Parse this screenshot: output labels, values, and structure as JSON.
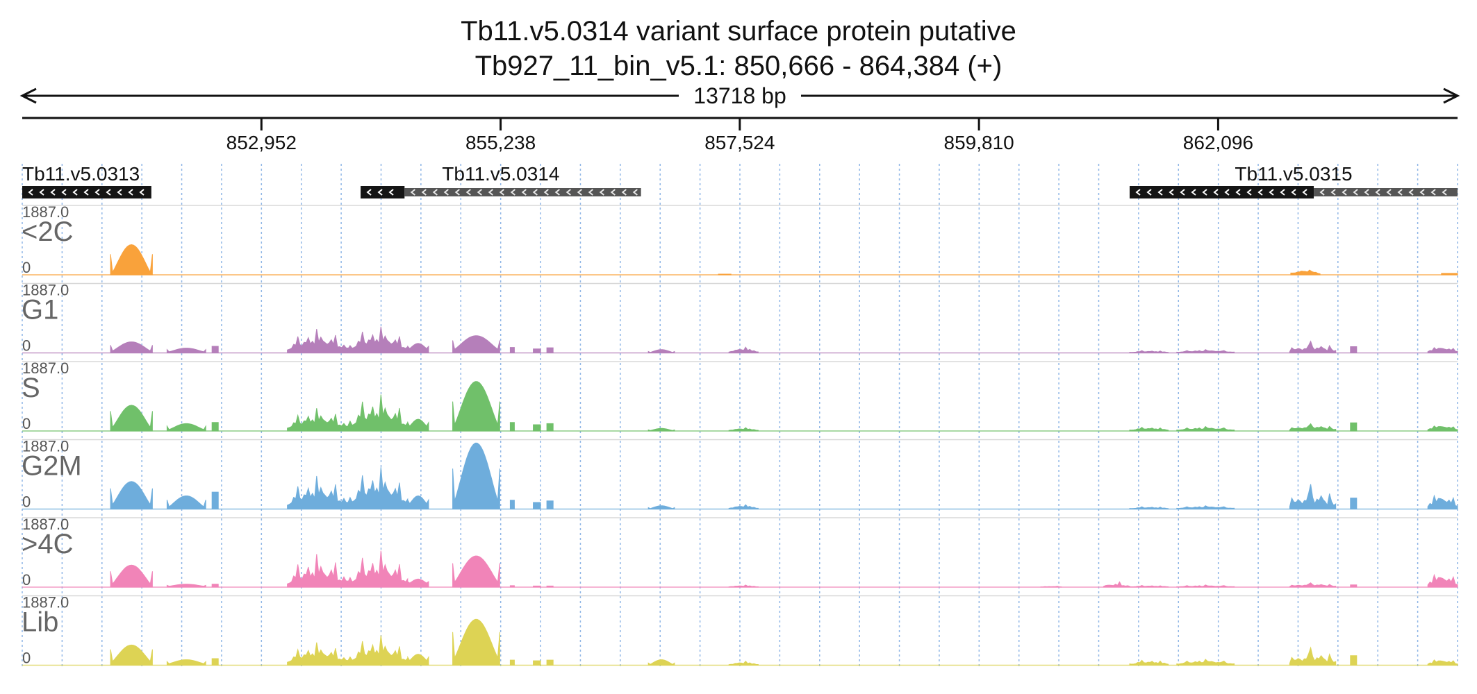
{
  "chart_data": {
    "type": "area",
    "title": "Tb11.v5.0314  variant surface protein  putative",
    "subtitle": "Tb927_11_bin_v5.1: 850,666 - 864,384 (+)",
    "span_label": "13718 bp",
    "xlim": [
      850666,
      864384
    ],
    "x_ticks": [
      852952,
      855238,
      857524,
      859810,
      862096
    ],
    "x_tick_labels": [
      "852,952",
      "855,238",
      "857,524",
      "859,810",
      "862,096"
    ],
    "genes": [
      {
        "name": "Tb11.v5.0313",
        "start": 850666,
        "end": 851900,
        "strand": "-",
        "segments": [
          {
            "start": 850666,
            "end": 851900,
            "style": "solid"
          }
        ]
      },
      {
        "name": "Tb11.v5.0314",
        "start": 853900,
        "end": 856580,
        "strand": "-",
        "segments": [
          {
            "start": 853900,
            "end": 854320,
            "style": "solid"
          },
          {
            "start": 854320,
            "end": 856580,
            "style": "utr"
          }
        ]
      },
      {
        "name": "Tb11.v5.0315",
        "start": 861250,
        "end": 864384,
        "strand": "-",
        "segments": [
          {
            "start": 861250,
            "end": 863010,
            "style": "solid"
          },
          {
            "start": 863010,
            "end": 864384,
            "style": "utr"
          }
        ]
      }
    ],
    "series": [
      {
        "name": "<2C",
        "color": "#F9A23B",
        "ymax_label": "1887.0",
        "ymin_label": "0",
        "blocks": [
          {
            "start": 851510,
            "end": 851910,
            "shape": "hump",
            "peak": 820,
            "edge": 560,
            "base": 0
          },
          {
            "start": 857320,
            "end": 857440,
            "shape": "flat",
            "peak": 18,
            "base": 0
          },
          {
            "start": 862790,
            "end": 863070,
            "shape": "bumpy",
            "peak": 140,
            "base": 80
          },
          {
            "start": 864230,
            "end": 864384,
            "shape": "flat",
            "peak": 40,
            "base": 0
          }
        ]
      },
      {
        "name": "G1",
        "color": "#B57FBA",
        "ymax_label": "1887.0",
        "ymin_label": "0",
        "blocks": [
          {
            "start": 851510,
            "end": 851910,
            "shape": "hump",
            "peak": 300,
            "edge": 210,
            "base": 30
          },
          {
            "start": 852050,
            "end": 852420,
            "shape": "hump",
            "peak": 130,
            "edge": 90,
            "base": 20
          },
          {
            "start": 852480,
            "end": 852540,
            "shape": "flat",
            "peak": 180,
            "base": 0
          },
          {
            "start": 853200,
            "end": 853780,
            "shape": "bumpy",
            "peak": 650,
            "base": 230
          },
          {
            "start": 853780,
            "end": 854350,
            "shape": "bumpy",
            "peak": 720,
            "base": 260
          },
          {
            "start": 854350,
            "end": 854550,
            "shape": "hump",
            "peak": 260,
            "edge": 180,
            "base": 80
          },
          {
            "start": 854780,
            "end": 855230,
            "shape": "hump",
            "peak": 470,
            "edge": 340,
            "base": 70
          },
          {
            "start": 855330,
            "end": 855370,
            "shape": "flat",
            "peak": 150,
            "base": 0
          },
          {
            "start": 855550,
            "end": 855620,
            "shape": "flat",
            "peak": 110,
            "base": 0
          },
          {
            "start": 855680,
            "end": 855740,
            "shape": "flat",
            "peak": 140,
            "base": 0
          },
          {
            "start": 856650,
            "end": 856900,
            "shape": "hump",
            "peak": 90,
            "edge": 40,
            "base": 0
          },
          {
            "start": 857420,
            "end": 857700,
            "shape": "bumpy",
            "peak": 160,
            "base": 60
          },
          {
            "start": 861250,
            "end": 861620,
            "shape": "bumpy",
            "peak": 70,
            "base": 30
          },
          {
            "start": 861700,
            "end": 862250,
            "shape": "bumpy",
            "peak": 90,
            "base": 40
          },
          {
            "start": 862780,
            "end": 863220,
            "shape": "bumpy",
            "peak": 320,
            "base": 80
          },
          {
            "start": 863360,
            "end": 863420,
            "shape": "flat",
            "peak": 170,
            "base": 0
          },
          {
            "start": 864100,
            "end": 864384,
            "shape": "bumpy",
            "peak": 190,
            "base": 90
          }
        ]
      },
      {
        "name": "S",
        "color": "#70C06A",
        "ymax_label": "1887.0",
        "ymin_label": "0",
        "blocks": [
          {
            "start": 851510,
            "end": 851910,
            "shape": "hump",
            "peak": 700,
            "edge": 540,
            "base": 40
          },
          {
            "start": 852050,
            "end": 852420,
            "shape": "hump",
            "peak": 200,
            "edge": 130,
            "base": 20
          },
          {
            "start": 852480,
            "end": 852540,
            "shape": "flat",
            "peak": 230,
            "base": 0
          },
          {
            "start": 853200,
            "end": 853780,
            "shape": "bumpy",
            "peak": 620,
            "base": 220
          },
          {
            "start": 853780,
            "end": 854350,
            "shape": "bumpy",
            "peak": 1000,
            "base": 320
          },
          {
            "start": 854350,
            "end": 854550,
            "shape": "hump",
            "peak": 320,
            "edge": 230,
            "base": 80
          },
          {
            "start": 854780,
            "end": 855230,
            "shape": "hump",
            "peak": 1350,
            "edge": 800,
            "base": 80
          },
          {
            "start": 855330,
            "end": 855370,
            "shape": "flat",
            "peak": 230,
            "base": 0
          },
          {
            "start": 855550,
            "end": 855620,
            "shape": "flat",
            "peak": 170,
            "base": 0
          },
          {
            "start": 855680,
            "end": 855740,
            "shape": "flat",
            "peak": 200,
            "base": 0
          },
          {
            "start": 856650,
            "end": 856900,
            "shape": "hump",
            "peak": 70,
            "edge": 30,
            "base": 0
          },
          {
            "start": 857420,
            "end": 857700,
            "shape": "bumpy",
            "peak": 90,
            "base": 40
          },
          {
            "start": 861250,
            "end": 861620,
            "shape": "bumpy",
            "peak": 110,
            "base": 50
          },
          {
            "start": 861700,
            "end": 862250,
            "shape": "bumpy",
            "peak": 120,
            "base": 50
          },
          {
            "start": 862780,
            "end": 863220,
            "shape": "bumpy",
            "peak": 200,
            "base": 70
          },
          {
            "start": 863360,
            "end": 863420,
            "shape": "flat",
            "peak": 220,
            "base": 0
          },
          {
            "start": 864100,
            "end": 864384,
            "shape": "bumpy",
            "peak": 180,
            "base": 90
          }
        ]
      },
      {
        "name": "G2M",
        "color": "#6EADDC",
        "ymax_label": "1887.0",
        "ymin_label": "0",
        "blocks": [
          {
            "start": 851510,
            "end": 851910,
            "shape": "hump",
            "peak": 750,
            "edge": 560,
            "base": 60
          },
          {
            "start": 852050,
            "end": 852420,
            "shape": "hump",
            "peak": 360,
            "edge": 250,
            "base": 30
          },
          {
            "start": 852480,
            "end": 852540,
            "shape": "flat",
            "peak": 460,
            "base": 0
          },
          {
            "start": 853200,
            "end": 853780,
            "shape": "bumpy",
            "peak": 900,
            "base": 300
          },
          {
            "start": 853780,
            "end": 854350,
            "shape": "bumpy",
            "peak": 1150,
            "base": 400
          },
          {
            "start": 854350,
            "end": 854550,
            "shape": "hump",
            "peak": 360,
            "edge": 250,
            "base": 90
          },
          {
            "start": 854780,
            "end": 855230,
            "shape": "hump",
            "peak": 1800,
            "edge": 1100,
            "base": 100
          },
          {
            "start": 855330,
            "end": 855370,
            "shape": "flat",
            "peak": 240,
            "base": 0
          },
          {
            "start": 855550,
            "end": 855620,
            "shape": "flat",
            "peak": 180,
            "base": 0
          },
          {
            "start": 855680,
            "end": 855740,
            "shape": "flat",
            "peak": 220,
            "base": 0
          },
          {
            "start": 856650,
            "end": 856900,
            "shape": "hump",
            "peak": 90,
            "edge": 40,
            "base": 0
          },
          {
            "start": 857420,
            "end": 857700,
            "shape": "bumpy",
            "peak": 120,
            "base": 50
          },
          {
            "start": 861250,
            "end": 861620,
            "shape": "bumpy",
            "peak": 70,
            "base": 30
          },
          {
            "start": 861700,
            "end": 862250,
            "shape": "bumpy",
            "peak": 90,
            "base": 40
          },
          {
            "start": 862780,
            "end": 863220,
            "shape": "bumpy",
            "peak": 680,
            "base": 150
          },
          {
            "start": 863360,
            "end": 863420,
            "shape": "flat",
            "peak": 300,
            "base": 0
          },
          {
            "start": 864100,
            "end": 864384,
            "shape": "bumpy",
            "peak": 480,
            "base": 180
          }
        ]
      },
      {
        "name": ">4C",
        "color": "#F184B8",
        "ymax_label": "1887.0",
        "ymin_label": "0",
        "blocks": [
          {
            "start": 851510,
            "end": 851910,
            "shape": "hump",
            "peak": 600,
            "edge": 430,
            "base": 40
          },
          {
            "start": 852050,
            "end": 852420,
            "shape": "hump",
            "peak": 80,
            "edge": 50,
            "base": 20
          },
          {
            "start": 852480,
            "end": 852540,
            "shape": "flat",
            "peak": 80,
            "base": 0
          },
          {
            "start": 853200,
            "end": 853780,
            "shape": "bumpy",
            "peak": 900,
            "base": 250
          },
          {
            "start": 853780,
            "end": 854350,
            "shape": "bumpy",
            "peak": 1000,
            "base": 300
          },
          {
            "start": 854350,
            "end": 854550,
            "shape": "hump",
            "peak": 220,
            "edge": 150,
            "base": 80
          },
          {
            "start": 854780,
            "end": 855230,
            "shape": "hump",
            "peak": 850,
            "edge": 650,
            "base": 80
          },
          {
            "start": 855330,
            "end": 855370,
            "shape": "flat",
            "peak": 40,
            "base": 0
          },
          {
            "start": 855550,
            "end": 855620,
            "shape": "flat",
            "peak": 30,
            "base": 0
          },
          {
            "start": 855680,
            "end": 855740,
            "shape": "flat",
            "peak": 30,
            "base": 0
          },
          {
            "start": 857420,
            "end": 857700,
            "shape": "bumpy",
            "peak": 60,
            "base": 20
          },
          {
            "start": 860400,
            "end": 860600,
            "shape": "bumpy",
            "peak": 30,
            "base": 10
          },
          {
            "start": 861000,
            "end": 861250,
            "shape": "bumpy",
            "peak": 150,
            "base": 40
          },
          {
            "start": 861250,
            "end": 861620,
            "shape": "bumpy",
            "peak": 50,
            "base": 20
          },
          {
            "start": 861700,
            "end": 862250,
            "shape": "bumpy",
            "peak": 60,
            "base": 20
          },
          {
            "start": 862780,
            "end": 863220,
            "shape": "bumpy",
            "peak": 120,
            "base": 40
          },
          {
            "start": 863360,
            "end": 863420,
            "shape": "flat",
            "peak": 60,
            "base": 0
          },
          {
            "start": 864100,
            "end": 864384,
            "shape": "bumpy",
            "peak": 440,
            "base": 160
          }
        ]
      },
      {
        "name": "Lib",
        "color": "#DDD354",
        "ymax_label": "1887.0",
        "ymin_label": "0",
        "blocks": [
          {
            "start": 851510,
            "end": 851910,
            "shape": "hump",
            "peak": 550,
            "edge": 430,
            "base": 60
          },
          {
            "start": 852050,
            "end": 852420,
            "shape": "hump",
            "peak": 150,
            "edge": 100,
            "base": 30
          },
          {
            "start": 852480,
            "end": 852540,
            "shape": "flat",
            "peak": 180,
            "base": 0
          },
          {
            "start": 853200,
            "end": 853780,
            "shape": "bumpy",
            "peak": 620,
            "base": 230
          },
          {
            "start": 853780,
            "end": 854350,
            "shape": "bumpy",
            "peak": 820,
            "base": 280
          },
          {
            "start": 854350,
            "end": 854550,
            "shape": "hump",
            "peak": 300,
            "edge": 220,
            "base": 80
          },
          {
            "start": 854780,
            "end": 855230,
            "shape": "hump",
            "peak": 1250,
            "edge": 900,
            "base": 120
          },
          {
            "start": 855330,
            "end": 855370,
            "shape": "flat",
            "peak": 140,
            "base": 0
          },
          {
            "start": 855550,
            "end": 855620,
            "shape": "flat",
            "peak": 120,
            "base": 0
          },
          {
            "start": 855680,
            "end": 855740,
            "shape": "flat",
            "peak": 140,
            "base": 0
          },
          {
            "start": 856650,
            "end": 856900,
            "shape": "hump",
            "peak": 150,
            "edge": 60,
            "base": 0
          },
          {
            "start": 857420,
            "end": 857700,
            "shape": "bumpy",
            "peak": 110,
            "base": 40
          },
          {
            "start": 861250,
            "end": 861620,
            "shape": "bumpy",
            "peak": 150,
            "base": 60
          },
          {
            "start": 861700,
            "end": 862250,
            "shape": "bumpy",
            "peak": 160,
            "base": 70
          },
          {
            "start": 862780,
            "end": 863220,
            "shape": "bumpy",
            "peak": 480,
            "base": 120
          },
          {
            "start": 863360,
            "end": 863420,
            "shape": "flat",
            "peak": 260,
            "base": 0
          },
          {
            "start": 864100,
            "end": 864384,
            "shape": "bumpy",
            "peak": 190,
            "base": 80
          }
        ]
      }
    ],
    "ylim": [
      0,
      1887
    ],
    "grid": true
  }
}
